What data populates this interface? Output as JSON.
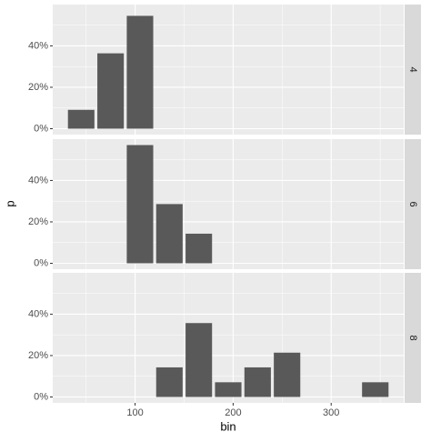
{
  "chart_data": {
    "type": "bar",
    "x_label": "bin",
    "y_label": "p",
    "color": "#595959",
    "xlim": [
      16,
      374
    ],
    "xticks": [
      100,
      200,
      300
    ],
    "x_minor_grid": [
      50,
      150,
      250,
      350
    ],
    "ylim": [
      -2.86,
      59.96
    ],
    "yticks": [
      {
        "value": 0,
        "label": "0%"
      },
      {
        "value": 20,
        "label": "20%"
      },
      {
        "value": 40,
        "label": "40%"
      }
    ],
    "y_minor_grid": [
      10,
      30,
      50
    ],
    "facets": [
      {
        "label": "4",
        "x": [
          45,
          75,
          105
        ],
        "values": [
          9.1,
          36.4,
          54.5
        ]
      },
      {
        "label": "6",
        "x": [
          105,
          135,
          165
        ],
        "values": [
          57.1,
          28.6,
          14.3
        ]
      },
      {
        "label": "8",
        "x": [
          135,
          165,
          195,
          225,
          255,
          345
        ],
        "values": [
          14.3,
          35.7,
          7.1,
          14.3,
          21.4,
          7.1
        ]
      }
    ]
  }
}
